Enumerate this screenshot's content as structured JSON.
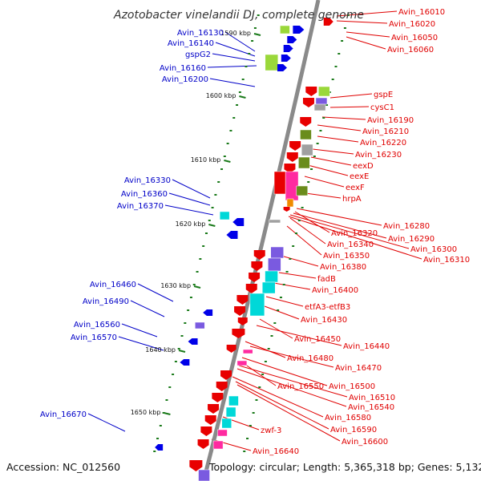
{
  "title": "Azotobacter vinelandii DJ, complete genome",
  "accession": "Accession: NC_012560",
  "topology": "Topology: circular; Length: 5,365,318 bp; Genes: 5,132",
  "ticks": [
    "1590 kbp",
    "1600 kbp",
    "1610 kbp",
    "1620 kbp",
    "1630 kbp",
    "1640 kbp",
    "1650 kbp"
  ],
  "left_labels": [
    "Avin_16130",
    "Avin_16140",
    "gspG2",
    "Avin_16160",
    "Avin_16200",
    "Avin_16330",
    "Avin_16360",
    "Avin_16370",
    "Avin_16460",
    "Avin_16490",
    "Avin_16560",
    "Avin_16570",
    "Avin_16670"
  ],
  "right_labels": [
    "Avin_16010",
    "Avin_16020",
    "Avin_16050",
    "Avin_16060",
    "gspE",
    "cysC1",
    "Avin_16190",
    "Avin_16210",
    "Avin_16220",
    "Avin_16230",
    "eexD",
    "eexE",
    "eexF",
    "hrpA",
    "Avin_16280",
    "Avin_16320",
    "Avin_16290",
    "Avin_16340",
    "Avin_16300",
    "Avin_16350",
    "Avin_16310",
    "Avin_16380",
    "fadB",
    "Avin_16400",
    "etfA3-etfB3",
    "Avin_16430",
    "Avin_16450",
    "Avin_16440",
    "Avin_16480",
    "Avin_16470",
    "Avin_16550",
    "Avin_16500",
    "Avin_16510",
    "Avin_16540",
    "Avin_16580",
    "Avin_16590",
    "zwf-3",
    "Avin_16600",
    "Avin_16640"
  ],
  "colors": {
    "backbone": "#8a8a8a",
    "label_right": "#e00000",
    "label_left": "#0000c8",
    "tick": "#1a7a1a",
    "gene_red": "#e80000",
    "gene_blue": "#0000e8",
    "gene_cyan": "#00d8d8",
    "gene_magenta": "#ff2aa0",
    "gene_olive": "#6a8c1c",
    "gene_lightgreen": "#9ad83a",
    "gene_purple": "#7a5ae0",
    "gene_gray": "#a0a0a0",
    "gene_orange": "#f08a00"
  }
}
